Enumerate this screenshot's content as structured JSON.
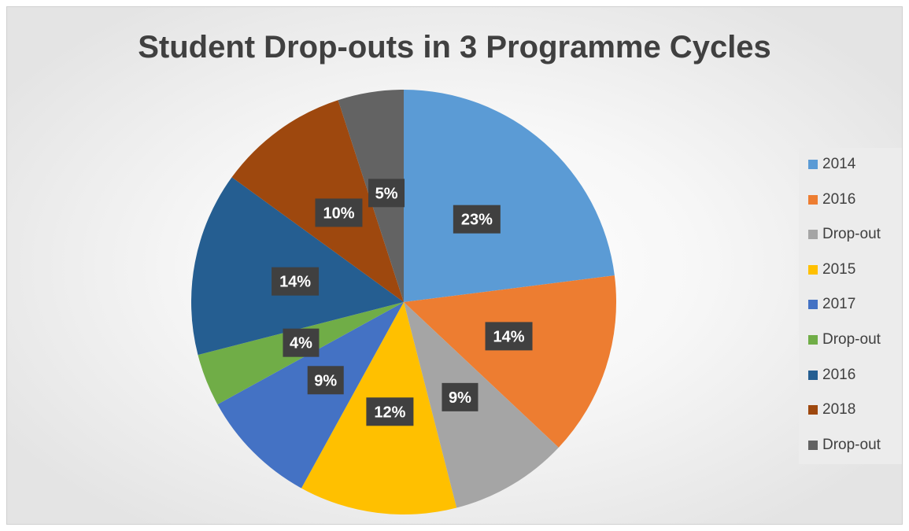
{
  "chart_data": {
    "type": "pie",
    "title": "Student Drop-outs in 3 Programme Cycles",
    "legend_position": "right",
    "slices": [
      {
        "label": "2014",
        "value": 23,
        "display": "23%",
        "color": "#5B9BD5"
      },
      {
        "label": "2016",
        "value": 14,
        "display": "14%",
        "color": "#ED7D31"
      },
      {
        "label": "Drop-out",
        "value": 9,
        "display": "9%",
        "color": "#A5A5A5"
      },
      {
        "label": "2015",
        "value": 12,
        "display": "12%",
        "color": "#FFC000"
      },
      {
        "label": "2017",
        "value": 9,
        "display": "9%",
        "color": "#4472C4"
      },
      {
        "label": "Drop-out",
        "value": 4,
        "display": "4%",
        "color": "#70AD47"
      },
      {
        "label": "2016",
        "value": 14,
        "display": "14%",
        "color": "#255E91"
      },
      {
        "label": "2018",
        "value": 10,
        "display": "10%",
        "color": "#9E480E"
      },
      {
        "label": "Drop-out",
        "value": 5,
        "display": "5%",
        "color": "#636363"
      }
    ]
  }
}
